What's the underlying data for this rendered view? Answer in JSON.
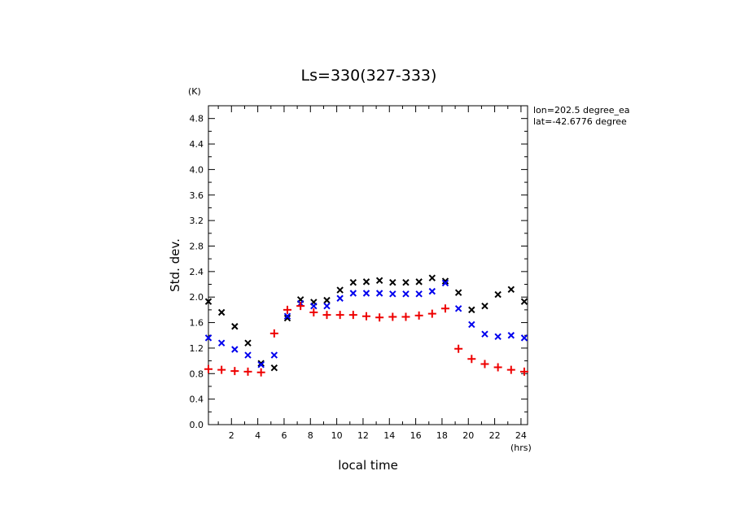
{
  "chart_data": {
    "type": "scatter",
    "title": "Ls=330(327-333)",
    "xlabel": "local time",
    "ylabel": "Std. dev.",
    "x_unit": "(hrs)",
    "y_unit": "(K)",
    "xlim": [
      0.25,
      24.5
    ],
    "ylim": [
      0.0,
      5.0
    ],
    "x_ticks": [
      2,
      4,
      6,
      8,
      10,
      12,
      14,
      16,
      18,
      20,
      22,
      24
    ],
    "y_ticks": [
      "0.0",
      "0.4",
      "0.8",
      "1.2",
      "1.6",
      "2.0",
      "2.4",
      "2.8",
      "3.2",
      "3.6",
      "4.0",
      "4.4",
      "4.8"
    ],
    "annotations": [
      "lon=202.5 degree_ea",
      "lat=-42.6776 degree"
    ],
    "grid": false,
    "x": [
      0.25,
      1.25,
      2.25,
      3.25,
      4.25,
      5.25,
      6.25,
      7.25,
      8.25,
      9.25,
      10.25,
      11.25,
      12.25,
      13.25,
      14.25,
      15.25,
      16.25,
      17.25,
      18.25,
      19.25,
      20.25,
      21.25,
      22.25,
      23.25,
      24.25
    ],
    "series": [
      {
        "marker": "x",
        "color": "#000000",
        "values": [
          1.93,
          1.76,
          1.54,
          1.28,
          0.96,
          0.89,
          1.67,
          1.96,
          1.92,
          1.95,
          2.11,
          2.23,
          2.24,
          2.26,
          2.23,
          2.23,
          2.24,
          2.3,
          2.25,
          2.07,
          1.8,
          1.86,
          2.04,
          2.12,
          1.93
        ]
      },
      {
        "marker": "x",
        "color": "#0000ee",
        "values": [
          1.36,
          1.28,
          1.18,
          1.09,
          0.94,
          1.09,
          1.7,
          1.9,
          1.86,
          1.86,
          1.98,
          2.06,
          2.06,
          2.06,
          2.05,
          2.05,
          2.05,
          2.09,
          2.22,
          1.82,
          1.57,
          1.42,
          1.38,
          1.4,
          1.36
        ]
      },
      {
        "marker": "+",
        "color": "#ee0000",
        "values": [
          0.87,
          0.86,
          0.84,
          0.83,
          0.82,
          1.43,
          1.8,
          1.86,
          1.76,
          1.72,
          1.72,
          1.72,
          1.7,
          1.68,
          1.69,
          1.69,
          1.71,
          1.74,
          1.82,
          1.19,
          1.03,
          0.95,
          0.9,
          0.86,
          0.83
        ]
      }
    ]
  }
}
